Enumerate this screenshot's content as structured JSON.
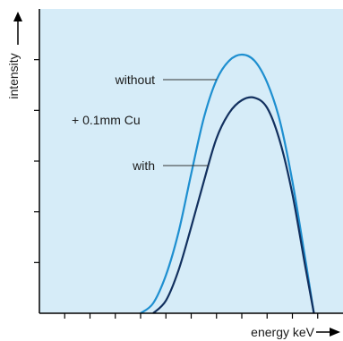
{
  "chart_data": {
    "type": "line",
    "title": "",
    "xlabel": "energy keV",
    "ylabel": "intensity",
    "xlim": [
      0,
      12
    ],
    "ylim": [
      0,
      6
    ],
    "x_ticks": [
      1,
      2,
      3,
      4,
      5,
      6,
      7,
      8,
      9,
      10,
      11
    ],
    "y_ticks": [
      1,
      2,
      3,
      4,
      5
    ],
    "grid": false,
    "background_color": "#d6ecf8",
    "annotation": "+ 0.1mm Cu",
    "series": [
      {
        "name": "without",
        "color": "#1e8fd0",
        "x": [
          4.0,
          4.5,
          5.0,
          5.5,
          6.0,
          6.5,
          7.0,
          7.5,
          8.0,
          8.5,
          9.0,
          9.5,
          10.0,
          10.5,
          10.85
        ],
        "y": [
          0.0,
          0.2,
          0.75,
          1.6,
          2.75,
          3.85,
          4.6,
          4.98,
          5.1,
          4.98,
          4.55,
          3.8,
          2.6,
          1.1,
          0.0
        ]
      },
      {
        "name": "with",
        "color": "#12305f",
        "x": [
          4.5,
          5.0,
          5.5,
          6.0,
          6.5,
          7.0,
          7.5,
          8.0,
          8.5,
          9.0,
          9.5,
          10.0,
          10.5,
          10.85
        ],
        "y": [
          0.0,
          0.25,
          0.85,
          1.7,
          2.6,
          3.45,
          3.95,
          4.2,
          4.25,
          4.05,
          3.4,
          2.35,
          0.95,
          0.0
        ]
      }
    ]
  }
}
